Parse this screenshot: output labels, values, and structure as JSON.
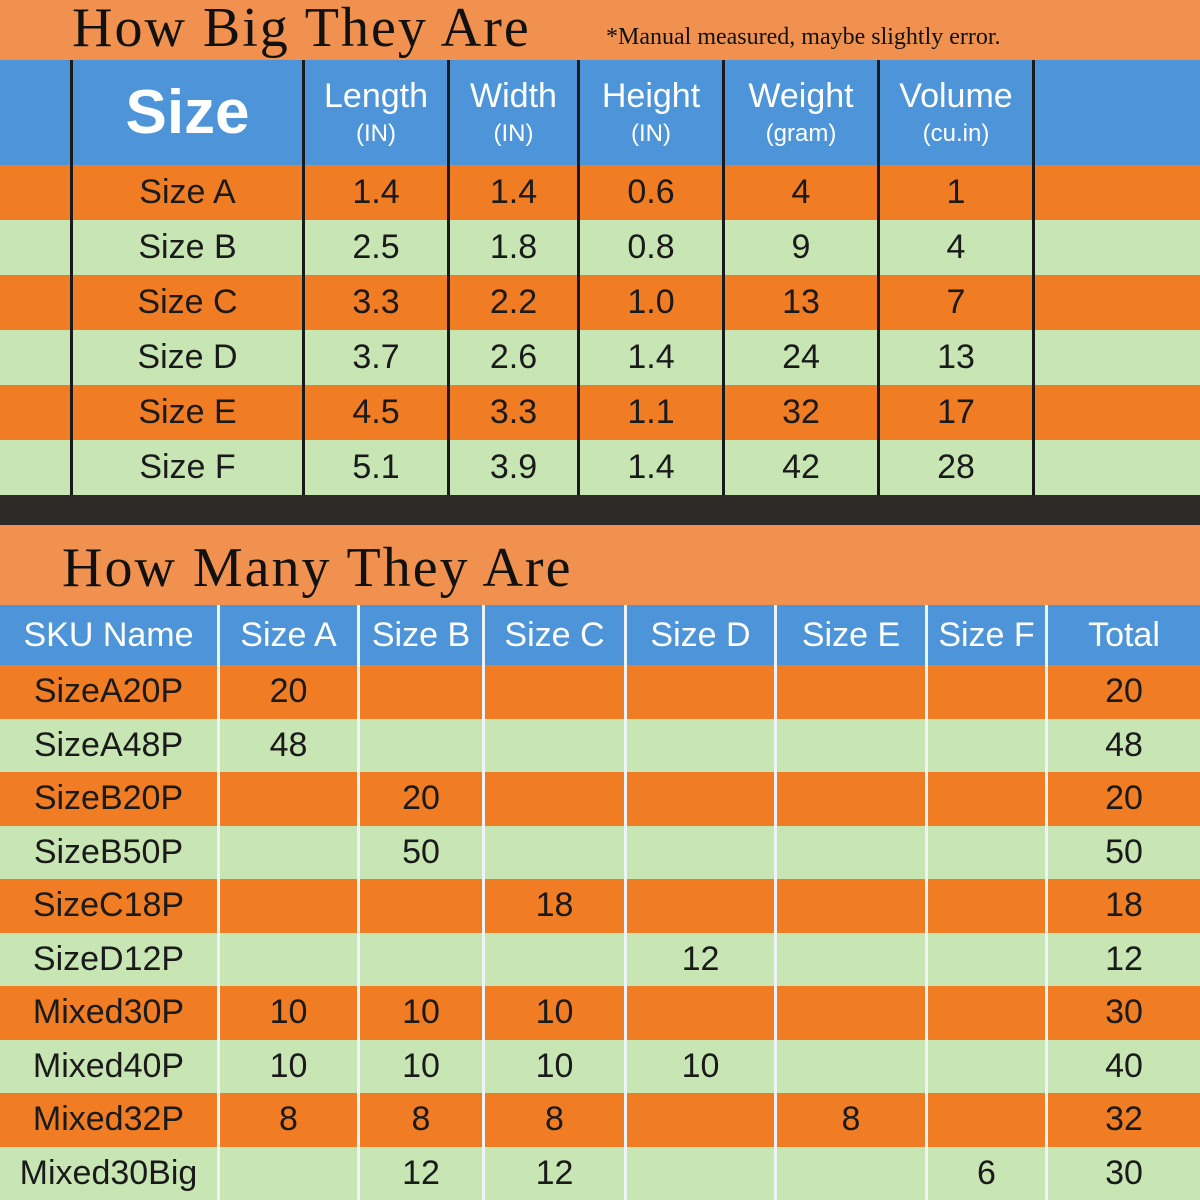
{
  "header": {
    "title": "How Big They Are",
    "note": "*Manual measured, maybe slightly error."
  },
  "size_table": {
    "columns": [
      {
        "label": "Size"
      },
      {
        "label": "Length",
        "unit": "(IN)"
      },
      {
        "label": "Width",
        "unit": "(IN)"
      },
      {
        "label": "Height",
        "unit": "(IN)"
      },
      {
        "label": "Weight",
        "unit": "(gram)"
      },
      {
        "label": "Volume",
        "unit": "(cu.in)"
      }
    ],
    "rows": [
      [
        "Size A",
        "1.4",
        "1.4",
        "0.6",
        "4",
        "1"
      ],
      [
        "Size B",
        "2.5",
        "1.8",
        "0.8",
        "9",
        "4"
      ],
      [
        "Size C",
        "3.3",
        "2.2",
        "1.0",
        "13",
        "7"
      ],
      [
        "Size D",
        "3.7",
        "2.6",
        "1.4",
        "24",
        "13"
      ],
      [
        "Size E",
        "4.5",
        "3.3",
        "1.1",
        "32",
        "17"
      ],
      [
        "Size F",
        "5.1",
        "3.9",
        "1.4",
        "42",
        "28"
      ]
    ]
  },
  "count_section": {
    "title": "How Many They Are"
  },
  "sku_table": {
    "columns": [
      "SKU Name",
      "Size A",
      "Size B",
      "Size C",
      "Size D",
      "Size E",
      "Size F",
      "Total"
    ],
    "rows": [
      [
        "SizeA20P",
        "20",
        null,
        null,
        null,
        null,
        null,
        "20"
      ],
      [
        "SizeA48P",
        "48",
        null,
        null,
        null,
        null,
        null,
        "48"
      ],
      [
        "SizeB20P",
        null,
        "20",
        null,
        null,
        null,
        null,
        "20"
      ],
      [
        "SizeB50P",
        null,
        "50",
        null,
        null,
        null,
        null,
        "50"
      ],
      [
        "SizeC18P",
        null,
        null,
        "18",
        null,
        null,
        null,
        "18"
      ],
      [
        "SizeD12P",
        null,
        null,
        null,
        "12",
        null,
        null,
        "12"
      ],
      [
        "Mixed30P",
        "10",
        "10",
        "10",
        null,
        null,
        null,
        "30"
      ],
      [
        "Mixed40P",
        "10",
        "10",
        "10",
        "10",
        null,
        null,
        "40"
      ],
      [
        "Mixed32P",
        "8",
        "8",
        "8",
        null,
        "8",
        null,
        "32"
      ],
      [
        "Mixed30Big",
        null,
        "12",
        "12",
        null,
        null,
        "6",
        "30"
      ]
    ]
  }
}
